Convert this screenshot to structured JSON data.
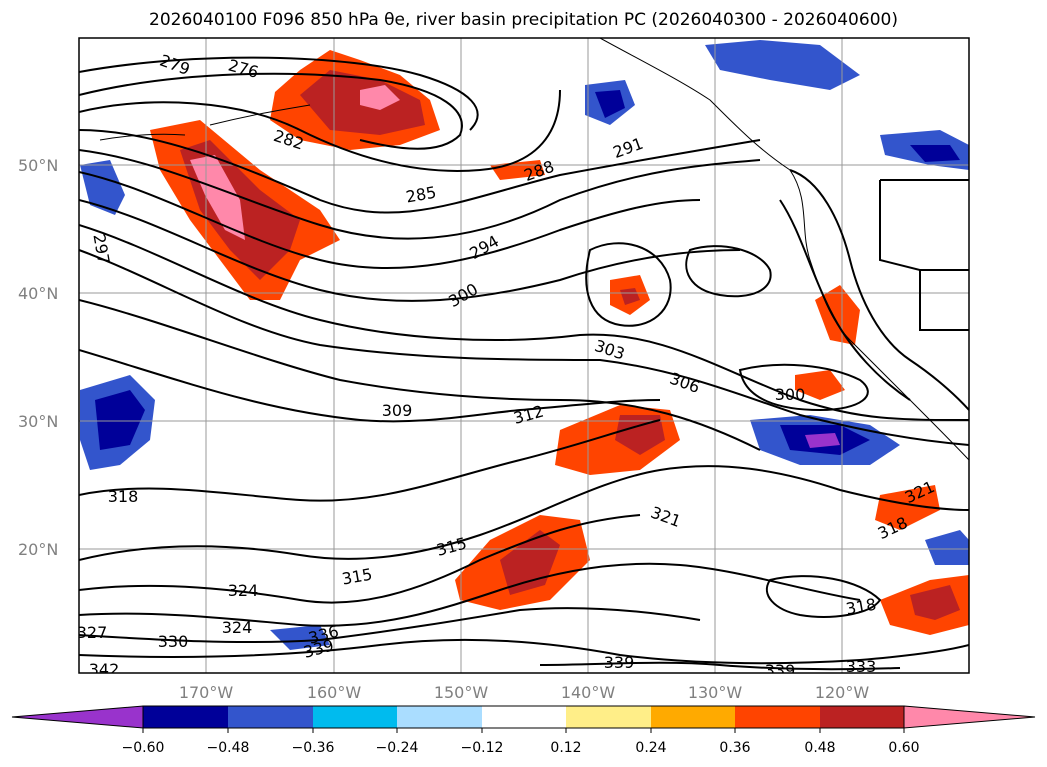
{
  "title": "2026040100 F096 850 hPa θe, river basin precipitation PC (2026040300 - 2026040600)",
  "map": {
    "lat_labels": [
      "50°N",
      "40°N",
      "30°N",
      "20°N"
    ],
    "lon_labels": [
      "170°W",
      "160°W",
      "150°W",
      "140°W",
      "130°W",
      "120°W"
    ],
    "contour_labels": [
      "279",
      "276",
      "282",
      "285",
      "288",
      "291",
      "294",
      "297",
      "300",
      "303",
      "306",
      "309",
      "312",
      "315",
      "318",
      "321",
      "324",
      "327",
      "330",
      "333",
      "336",
      "339",
      "342"
    ]
  },
  "colorbar": {
    "ticks": [
      "−0.60",
      "−0.48",
      "−0.36",
      "−0.24",
      "−0.12",
      "0.12",
      "0.24",
      "0.36",
      "0.48",
      "0.60"
    ],
    "colors": [
      "#9933cc",
      "#000099",
      "#3355cc",
      "#00bbee",
      "#aaddff",
      "#ffffff",
      "#ffee88",
      "#ffaa00",
      "#ff4400",
      "#bb2222",
      "#ff88aa"
    ]
  }
}
